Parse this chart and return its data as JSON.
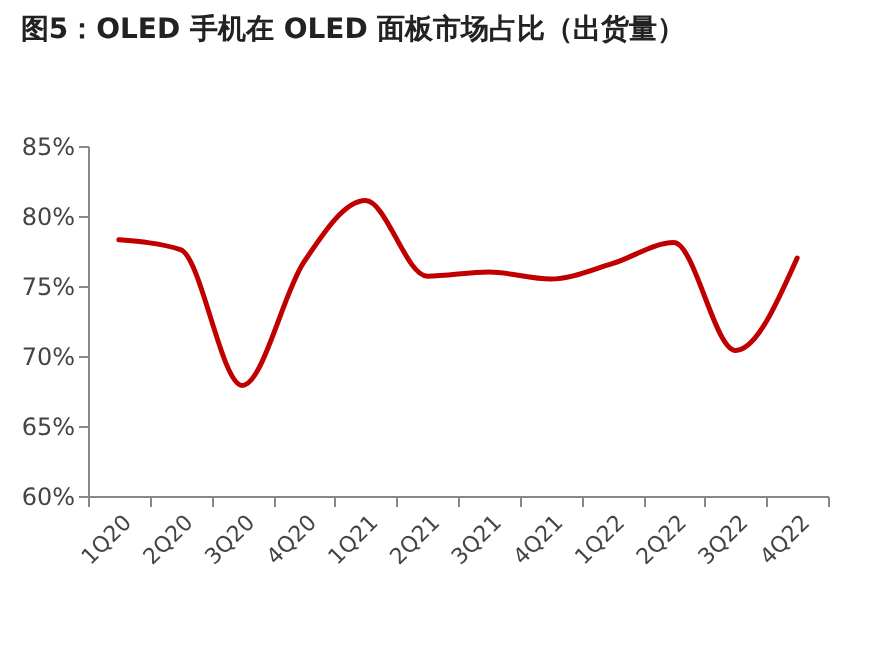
{
  "chart_data": {
    "type": "line",
    "title": "图5：OLED 手机在 OLED 面板市场占比（出货量）",
    "categories": [
      "1Q20",
      "2Q20",
      "3Q20",
      "4Q20",
      "1Q21",
      "2Q21",
      "3Q21",
      "4Q21",
      "1Q22",
      "2Q22",
      "3Q22",
      "4Q22"
    ],
    "series": [
      {
        "color": "#c00000",
        "values": [
          78.3,
          77.6,
          67.9,
          76.7,
          81.1,
          75.7,
          76.0,
          75.5,
          76.6,
          78.1,
          70.4,
          77.0
        ]
      }
    ],
    "ylim": [
      60,
      85
    ],
    "yticks": [
      {
        "value": 60,
        "label": "60%"
      },
      {
        "value": 65,
        "label": "65%"
      },
      {
        "value": 70,
        "label": "70%"
      },
      {
        "value": 75,
        "label": "75%"
      },
      {
        "value": 80,
        "label": "80%"
      },
      {
        "value": 85,
        "label": "85%"
      }
    ],
    "grid": false,
    "marker": "none",
    "line_style": "solid"
  }
}
